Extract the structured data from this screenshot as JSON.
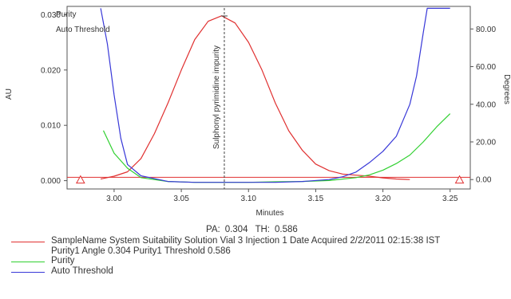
{
  "chart_data": {
    "type": "line",
    "xlabel": "Minutes",
    "ylabel_left": "AU",
    "ylabel_right": "Degrees",
    "xlim": [
      2.965,
      3.265
    ],
    "ylim_left": [
      -0.0015,
      0.0315
    ],
    "ylim_right": [
      -5.0,
      92.0
    ],
    "x_ticks": [
      3.0,
      3.05,
      3.1,
      3.15,
      3.2,
      3.25
    ],
    "x_tick_labels": [
      "3.00",
      "3.05",
      "3.10",
      "3.15",
      "3.20",
      "3.25"
    ],
    "y_left_ticks": [
      0.0,
      0.01,
      0.02,
      0.03
    ],
    "y_left_tick_labels": [
      "0.000",
      "0.010",
      "0.020",
      "0.030"
    ],
    "y_right_ticks": [
      0.0,
      20.0,
      40.0,
      60.0,
      80.0
    ],
    "y_right_tick_labels": [
      "0.00",
      "20.00",
      "40.00",
      "60.00",
      "80.00"
    ],
    "peak_label": "Sulphonyl pyrimidine impurity",
    "peak_marker_x": 3.082,
    "inline_legend": [
      "Purity",
      "Auto Threshold"
    ],
    "threshold_marker_x": [
      2.975,
      3.257
    ],
    "threshold_marker_y": 0.0,
    "series": [
      {
        "name": "SampleName System Suitability Solution Vial 3 Injection 1 Date Acquired 2/2/2011 02:15:38 IST",
        "axis": "left",
        "color": "#e03030",
        "x": [
          2.99,
          3.0,
          3.01,
          3.02,
          3.03,
          3.04,
          3.05,
          3.06,
          3.07,
          3.08,
          3.09,
          3.1,
          3.11,
          3.12,
          3.13,
          3.14,
          3.15,
          3.16,
          3.17,
          3.18,
          3.19,
          3.2,
          3.21,
          3.22
        ],
        "y": [
          0.0003,
          0.0008,
          0.0016,
          0.004,
          0.0085,
          0.014,
          0.02,
          0.0255,
          0.0288,
          0.0298,
          0.0285,
          0.025,
          0.02,
          0.014,
          0.009,
          0.0055,
          0.003,
          0.0018,
          0.0012,
          0.001,
          0.0008,
          0.0005,
          0.0003,
          0.0002
        ]
      },
      {
        "name": "Purity",
        "axis": "right",
        "color": "#30d030",
        "x": [
          2.992,
          3.0,
          3.01,
          3.02,
          3.04,
          3.06,
          3.08,
          3.1,
          3.12,
          3.14,
          3.16,
          3.18,
          3.19,
          3.2,
          3.21,
          3.22,
          3.23,
          3.24,
          3.25
        ],
        "y": [
          26.0,
          14.0,
          6.0,
          1.0,
          -1.0,
          -1.5,
          -1.5,
          -1.5,
          -1.2,
          -1.0,
          -0.5,
          1.0,
          2.5,
          5.0,
          8.5,
          13.0,
          20.0,
          28.0,
          35.0
        ]
      },
      {
        "name": "Auto Threshold",
        "axis": "right",
        "color": "#3838d8",
        "x": [
          2.99,
          2.995,
          3.0,
          3.005,
          3.01,
          3.02,
          3.04,
          3.06,
          3.08,
          3.1,
          3.12,
          3.14,
          3.16,
          3.17,
          3.18,
          3.19,
          3.2,
          3.21,
          3.22,
          3.225,
          3.23,
          3.233,
          3.24,
          3.25
        ],
        "y": [
          91.0,
          72.0,
          45.0,
          22.0,
          8.0,
          2.0,
          -1.0,
          -1.5,
          -1.5,
          -1.5,
          -1.5,
          -1.0,
          0.0,
          1.5,
          4.0,
          9.0,
          15.0,
          23.0,
          40.0,
          55.0,
          78.0,
          91.0,
          91.0,
          91.0
        ]
      }
    ],
    "threshold_line": {
      "axis": "left",
      "y": 0.0006,
      "color": "#e03030"
    }
  },
  "annotation": {
    "pa_label": "PA:",
    "pa_value": "0.304",
    "th_label": "TH:",
    "th_value": "0.586"
  },
  "legend": [
    {
      "color": "#e03030",
      "text": "SampleName System Suitability Solution Vial 3 Injection 1 Date Acquired 2/2/2011 02:15:38 IST",
      "subtext": "Purity1 Angle 0.304 Purity1 Threshold 0.586"
    },
    {
      "color": "#30d030",
      "text": "Purity"
    },
    {
      "color": "#3838d8",
      "text": "Auto Threshold"
    }
  ]
}
